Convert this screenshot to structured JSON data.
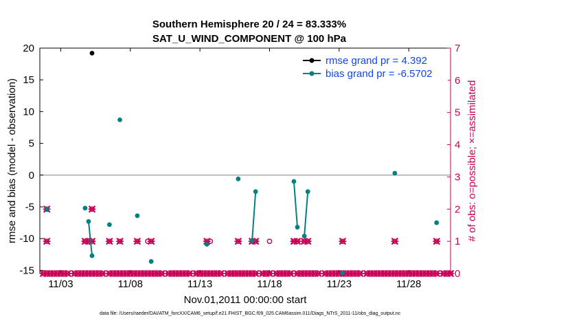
{
  "chart_data": {
    "type": "scatter",
    "title_line1": "Southern Hemisphere 20 / 24 = 83.333%",
    "title_line2": "SAT_U_WIND_COMPONENT @ 100 hPa",
    "xlabel": "Nov.01,2011 00:00:00 start",
    "ylabel_left": "rmse and bias (model - observation)",
    "ylabel_right": "# of obs: o=possible; ×=assimilated",
    "footnote": "data file: /Users/raeder/DAI/ATM_forcXX/CAM6_setup/f.e21.FHIST_BGC.f09_025.CAM6assim.011/Diags_NTrS_2011-11/obs_diag_output.nc",
    "xlim": [
      1.5,
      31
    ],
    "ylim_left": [
      -15.5,
      20
    ],
    "ylim_right": [
      0,
      7
    ],
    "x_ticks": [
      3,
      8,
      13,
      18,
      23,
      28
    ],
    "x_tick_labels": [
      "11/03",
      "11/08",
      "11/13",
      "11/18",
      "11/23",
      "11/28"
    ],
    "y_ticks_left": [
      -15,
      -10,
      -5,
      0,
      5,
      10,
      15,
      20
    ],
    "y_ticks_right": [
      0,
      1,
      2,
      3,
      4,
      5,
      6,
      7
    ],
    "colors": {
      "rmse": "#000000",
      "bias": "#008080",
      "obs": "#cc0055",
      "legend_text": "#1144ee",
      "zero_line": "#aaaaaa"
    },
    "series": [
      {
        "name": "rmse",
        "legend": "rmse grand pr = 4.392",
        "points": [
          [
            5.25,
            19.2
          ]
        ]
      },
      {
        "name": "bias",
        "legend": "bias grand pr = -6.5702",
        "points": [
          [
            2.0,
            -5.3
          ],
          [
            4.75,
            -5.2
          ],
          [
            5.0,
            -7.3
          ],
          [
            5.25,
            -12.7
          ],
          [
            6.5,
            -7.8
          ],
          [
            7.25,
            8.7
          ],
          [
            8.5,
            -6.4
          ],
          [
            9.5,
            -13.6
          ],
          [
            13.5,
            -10.9
          ],
          [
            15.75,
            -0.6
          ],
          [
            16.75,
            -10.3
          ],
          [
            17.0,
            -2.6
          ],
          [
            19.75,
            -1.0
          ],
          [
            20.0,
            -8.2
          ],
          [
            20.5,
            -9.6
          ],
          [
            20.75,
            -2.6
          ],
          [
            23.25,
            -15.4
          ],
          [
            27.0,
            0.3
          ],
          [
            30.0,
            -7.5
          ]
        ],
        "segments": [
          [
            [
              5.0,
              -7.3
            ],
            [
              5.25,
              -12.7
            ]
          ],
          [
            [
              16.75,
              -10.3
            ],
            [
              17.0,
              -2.6
            ]
          ],
          [
            [
              19.75,
              -1.0
            ],
            [
              20.0,
              -8.2
            ]
          ],
          [
            [
              20.5,
              -9.6
            ],
            [
              20.75,
              -2.6
            ]
          ]
        ]
      },
      {
        "name": "obs_possible",
        "points": [
          [
            2.0,
            2
          ],
          [
            5.25,
            2
          ],
          [
            2.0,
            1
          ],
          [
            4.75,
            1
          ],
          [
            5.0,
            1
          ],
          [
            5.25,
            1
          ],
          [
            6.5,
            1
          ],
          [
            7.25,
            1
          ],
          [
            8.5,
            1
          ],
          [
            9.25,
            1
          ],
          [
            9.5,
            1
          ],
          [
            13.5,
            1
          ],
          [
            13.75,
            1
          ],
          [
            15.75,
            1
          ],
          [
            16.75,
            1
          ],
          [
            17.0,
            1
          ],
          [
            18.0,
            1
          ],
          [
            19.75,
            1
          ],
          [
            20.0,
            1
          ],
          [
            20.5,
            1
          ],
          [
            20.75,
            1
          ],
          [
            23.25,
            1
          ],
          [
            27.0,
            1
          ],
          [
            30.0,
            1
          ]
        ]
      },
      {
        "name": "obs_assimilated",
        "points": [
          [
            2.0,
            2
          ],
          [
            5.25,
            2
          ],
          [
            2.0,
            1
          ],
          [
            4.75,
            1
          ],
          [
            5.0,
            1
          ],
          [
            5.25,
            1
          ],
          [
            6.5,
            1
          ],
          [
            7.25,
            1
          ],
          [
            8.5,
            1
          ],
          [
            9.5,
            1
          ],
          [
            13.5,
            1
          ],
          [
            15.75,
            1
          ],
          [
            16.75,
            1
          ],
          [
            17.0,
            1
          ],
          [
            19.75,
            1
          ],
          [
            20.0,
            1
          ],
          [
            20.5,
            1
          ],
          [
            20.75,
            1
          ],
          [
            23.25,
            1
          ],
          [
            27.0,
            1
          ],
          [
            30.0,
            1
          ]
        ]
      }
    ],
    "zero_count_x_start": 1.75,
    "zero_count_x_end": 31.0,
    "zero_count_gaps": [
      3.75,
      6.25,
      10.5,
      12.5,
      14.75,
      17.25,
      18.25,
      19.75,
      21.75,
      24.75,
      30.25
    ]
  }
}
